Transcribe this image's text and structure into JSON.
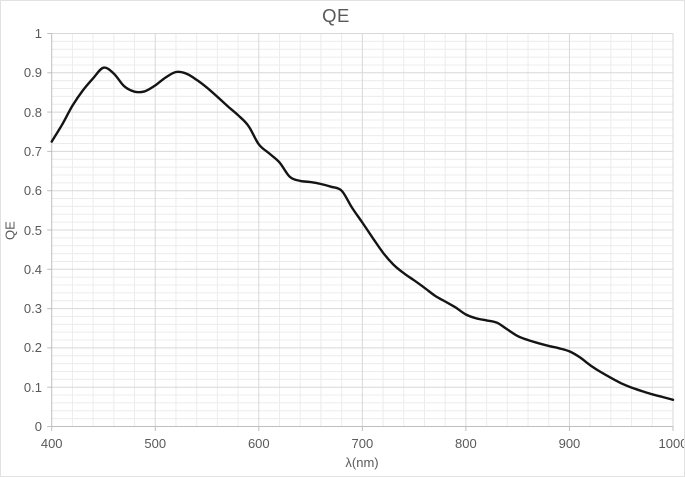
{
  "chart_data": {
    "type": "line",
    "title": "QE",
    "xlabel": "λ(nm)",
    "ylabel": "QE",
    "x_range": [
      400,
      1000
    ],
    "y_range": [
      0,
      1
    ],
    "x_major_step": 100,
    "x_minor_step": 20,
    "y_major_step": 0.1,
    "y_minor_step": 0.02,
    "grid": "major+minor",
    "legend": "none",
    "x_tick_labels": [
      "400",
      "500",
      "600",
      "700",
      "800",
      "900",
      "1000"
    ],
    "y_tick_labels": [
      "0",
      "0.1",
      "0.2",
      "0.3",
      "0.4",
      "0.5",
      "0.6",
      "0.7",
      "0.8",
      "0.9",
      "1"
    ],
    "series": [
      {
        "name": "QE",
        "x": [
          400,
          410,
          420,
          430,
          440,
          450,
          460,
          470,
          480,
          490,
          500,
          510,
          520,
          530,
          540,
          550,
          560,
          570,
          580,
          590,
          600,
          610,
          620,
          630,
          640,
          650,
          660,
          670,
          680,
          690,
          700,
          710,
          720,
          730,
          740,
          750,
          760,
          770,
          780,
          790,
          800,
          810,
          820,
          830,
          840,
          850,
          860,
          870,
          880,
          890,
          900,
          910,
          920,
          930,
          940,
          950,
          960,
          970,
          980,
          990,
          1000
        ],
        "y": [
          0.725,
          0.768,
          0.816,
          0.855,
          0.886,
          0.913,
          0.898,
          0.866,
          0.852,
          0.853,
          0.868,
          0.888,
          0.902,
          0.898,
          0.882,
          0.862,
          0.839,
          0.815,
          0.792,
          0.765,
          0.718,
          0.695,
          0.672,
          0.635,
          0.625,
          0.622,
          0.617,
          0.61,
          0.6,
          0.557,
          0.519,
          0.48,
          0.442,
          0.412,
          0.39,
          0.372,
          0.353,
          0.333,
          0.318,
          0.303,
          0.285,
          0.275,
          0.27,
          0.264,
          0.247,
          0.23,
          0.22,
          0.212,
          0.205,
          0.199,
          0.191,
          0.176,
          0.156,
          0.139,
          0.124,
          0.11,
          0.099,
          0.09,
          0.082,
          0.075,
          0.068
        ]
      }
    ]
  },
  "colors": {
    "background": "#ffffff",
    "grid_minor": "#ececec",
    "grid_major": "#d8d8d8",
    "axis_line": "#bfbfbf",
    "text": "#595959",
    "series_line": "#141414"
  }
}
